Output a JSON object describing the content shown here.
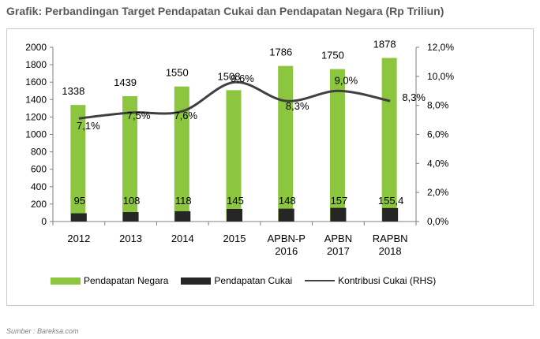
{
  "title": "Grafik: Perbandingan Target Pendapatan Cukai dan Pendapatan Negara (Rp Triliun)",
  "source": "Sumber : Bareksa.com",
  "colors": {
    "green": "#8CC63F",
    "dark": "#262626",
    "line": "#404040",
    "text": "#000000"
  },
  "chart_data": {
    "type": "bar",
    "categories": [
      [
        "2012"
      ],
      [
        "2013"
      ],
      [
        "2014"
      ],
      [
        "2015"
      ],
      [
        "APBN-P",
        "2016"
      ],
      [
        "APBN",
        "2017"
      ],
      [
        "RAPBN",
        "2018"
      ]
    ],
    "series": [
      {
        "name": "Pendapatan Negara",
        "axis": "left",
        "values": [
          1338,
          1439,
          1550,
          1508,
          1786,
          1750,
          1878
        ],
        "labels": [
          "1338",
          "1439",
          "1550",
          "1508",
          "1786",
          "1750",
          "1878"
        ]
      },
      {
        "name": "Pendapatan Cukai",
        "axis": "left",
        "values": [
          95,
          108,
          118,
          145,
          148,
          157,
          155.4
        ],
        "labels": [
          "95",
          "108",
          "118",
          "145",
          "148",
          "157",
          "155,4"
        ]
      },
      {
        "name": "Kontribusi Cukai (RHS)",
        "axis": "right",
        "type": "line",
        "values": [
          7.1,
          7.5,
          7.6,
          9.6,
          8.3,
          9.0,
          8.3
        ],
        "labels": [
          "7,1%",
          "7,5%",
          "7,6%",
          "9,6%",
          "8,3%",
          "9,0%",
          "8,3%"
        ]
      }
    ],
    "y_left": {
      "min": 0,
      "max": 2000,
      "ticks": [
        "0",
        "200",
        "400",
        "600",
        "800",
        "1000",
        "1200",
        "1400",
        "1600",
        "1800",
        "2000"
      ]
    },
    "y_right": {
      "min": 0,
      "max": 12,
      "ticks": [
        "0,0%",
        "2,0%",
        "4,0%",
        "6,0%",
        "8,0%",
        "10,0%",
        "12,0%"
      ]
    },
    "grid": false,
    "legend": "bottom"
  }
}
